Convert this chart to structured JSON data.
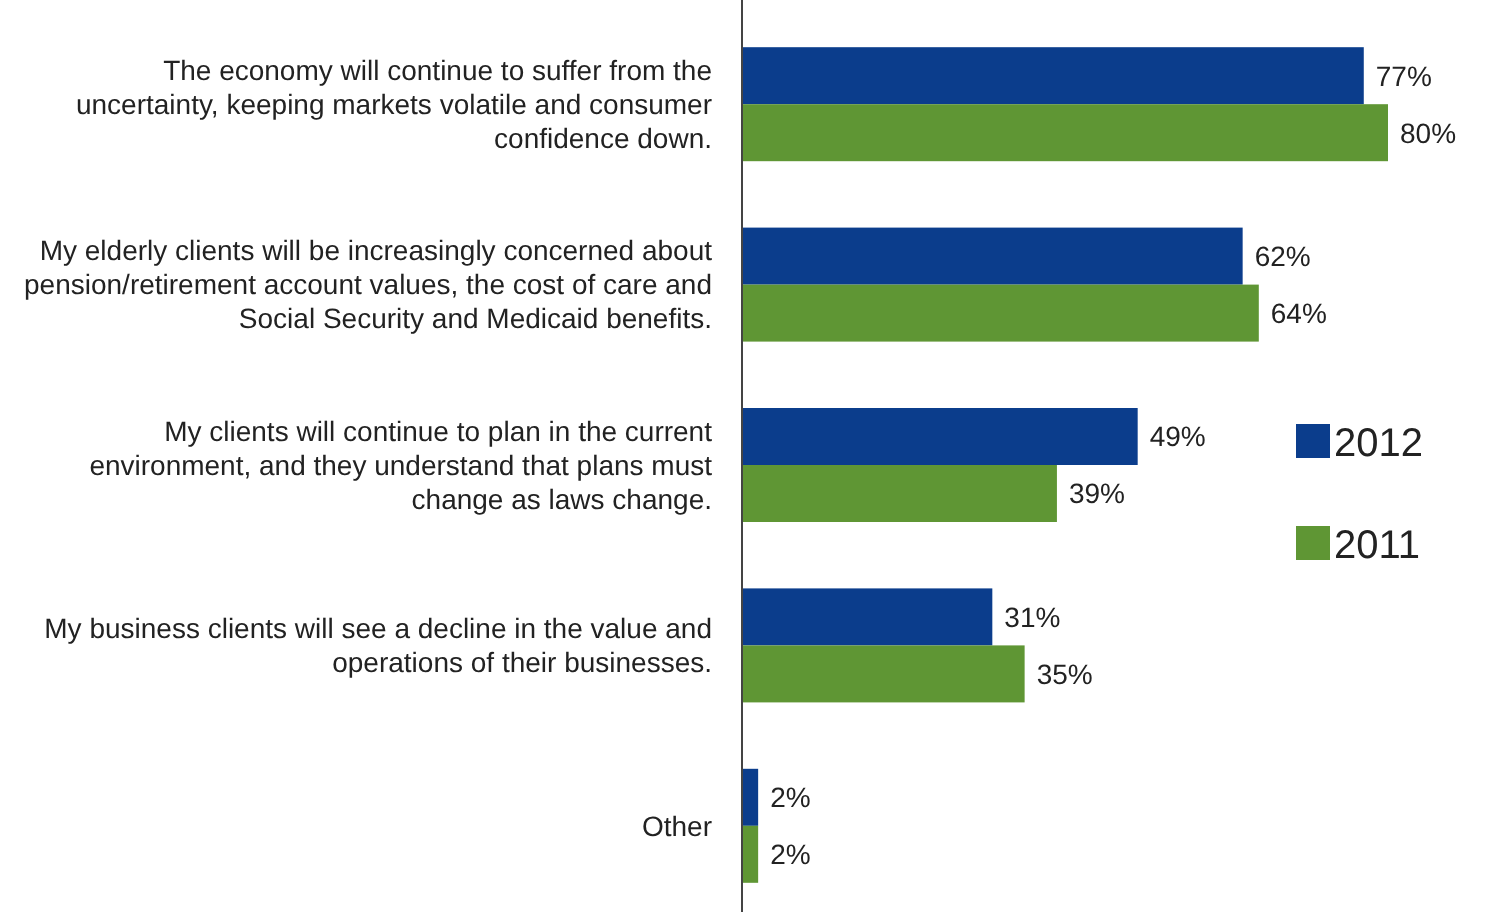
{
  "chart_data": {
    "type": "bar",
    "orientation": "horizontal",
    "legend": "right",
    "categories": [
      "The economy will continue to suffer from the uncertainty, keeping markets volatile and consumer confidence down.",
      "My elderly clients will be increasingly concerned about pension/retirement account values, the cost of care and Social Security and Medicaid benefits.",
      "My clients will continue to plan in the current environment, and they understand that plans must change as laws change.",
      "My business clients will see a decline in the value and operations of their businesses.",
      "Other"
    ],
    "series": [
      {
        "name": "2012",
        "color": "#0b3d8c",
        "values": [
          77,
          62,
          49,
          31,
          2
        ],
        "value_labels": [
          "77%",
          "62%",
          "49%",
          "31%",
          "2%"
        ]
      },
      {
        "name": "2011",
        "color": "#5f9634",
        "values": [
          80,
          64,
          39,
          35,
          2
        ],
        "value_labels": [
          "80%",
          "64%",
          "39%",
          "35%",
          "2%"
        ]
      }
    ]
  }
}
